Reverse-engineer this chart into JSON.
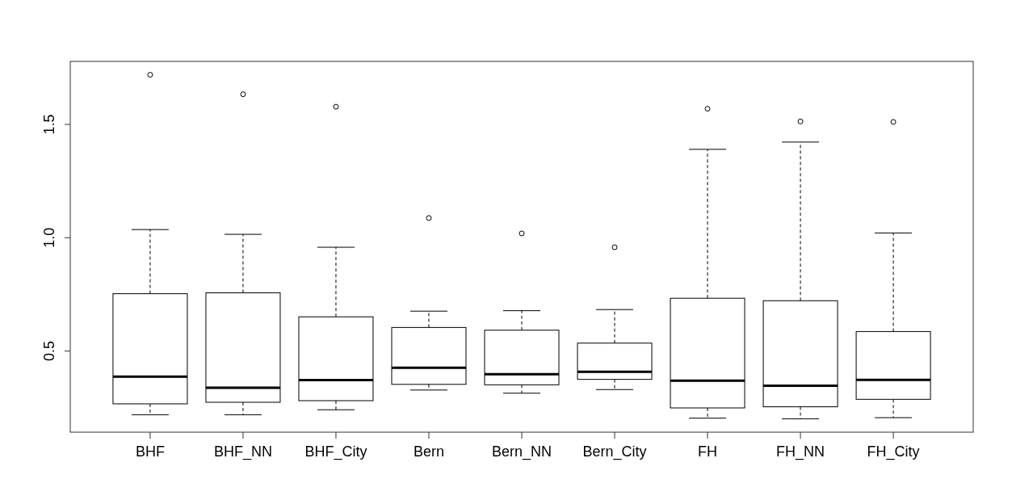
{
  "chart_data": {
    "type": "box",
    "categories": [
      "BHF",
      "BHF_NN",
      "BHF_City",
      "Bern",
      "Bern_NN",
      "Bern_City",
      "FH",
      "FH_NN",
      "FH_City"
    ],
    "boxes": [
      {
        "low": 0.219,
        "q1": 0.267,
        "median": 0.387,
        "q3": 0.753,
        "high": 1.036,
        "outliers": [
          1.719
        ]
      },
      {
        "low": 0.219,
        "q1": 0.274,
        "median": 0.338,
        "q3": 0.757,
        "high": 1.015,
        "outliers": [
          1.633
        ]
      },
      {
        "low": 0.241,
        "q1": 0.281,
        "median": 0.372,
        "q3": 0.651,
        "high": 0.958,
        "outliers": [
          1.578
        ]
      },
      {
        "low": 0.328,
        "q1": 0.353,
        "median": 0.426,
        "q3": 0.604,
        "high": 0.676,
        "outliers": [
          1.087
        ]
      },
      {
        "low": 0.314,
        "q1": 0.351,
        "median": 0.398,
        "q3": 0.592,
        "high": 0.678,
        "outliers": [
          1.019
        ]
      },
      {
        "low": 0.33,
        "q1": 0.375,
        "median": 0.408,
        "q3": 0.535,
        "high": 0.683,
        "outliers": [
          0.958
        ]
      },
      {
        "low": 0.204,
        "q1": 0.249,
        "median": 0.369,
        "q3": 0.733,
        "high": 1.39,
        "outliers": [
          1.569
        ]
      },
      {
        "low": 0.201,
        "q1": 0.254,
        "median": 0.347,
        "q3": 0.722,
        "high": 1.422,
        "outliers": [
          1.513
        ]
      },
      {
        "low": 0.206,
        "q1": 0.287,
        "median": 0.373,
        "q3": 0.586,
        "high": 1.021,
        "outliers": [
          1.511
        ]
      }
    ],
    "color": "#000000",
    "ylim": [
      0.142,
      1.778
    ],
    "yticks": [
      0.5,
      {
        "value": 1.0,
        "label": "1.0"
      },
      1.5
    ],
    "grid": false
  }
}
